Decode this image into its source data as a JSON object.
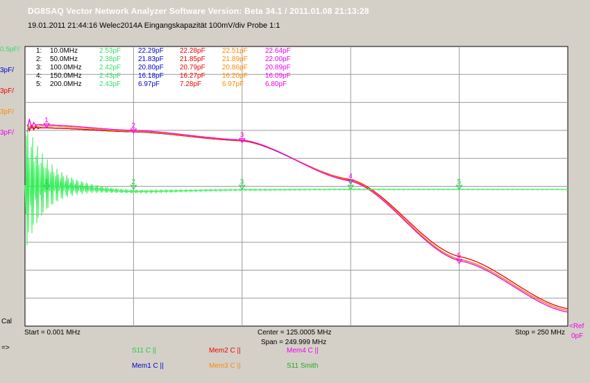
{
  "window": {
    "title": "DG8SAQ Vector Network Analyzer Software    Version:  Beta 34.1  /  2011.01.08  21:13:28",
    "subtitle": "19.01.2011    21:44:16    Welec2014A Eingangskapazität 100mV/div Probe 1:1"
  },
  "axis_labels": {
    "y_top": [
      {
        "text": "0.5pF/",
        "color": "#33dd66"
      },
      {
        "text": "3pF/",
        "color": "#0000cc"
      },
      {
        "text": "3pF/",
        "color": "#ee0000"
      },
      {
        "text": "3pF/",
        "color": "#ff8800"
      },
      {
        "text": "3pF/",
        "color": "#ee00ee"
      }
    ],
    "cal": "Cal",
    "start": "Start = 0.001 MHz",
    "center": "Center = 125.0005 MHz",
    "span": "Span = 249.999 MHz",
    "stop": "Stop = 250 MHz",
    "ref": "<Ref",
    "zero": "0pF",
    "arrow": "=>"
  },
  "markers": {
    "rows": [
      {
        "id": "1:",
        "freq": "10.0MHz",
        "s11": "2.53pF",
        "mem1": "22.29pF",
        "mem2": "22.28pF",
        "mem3": "22.51pF",
        "mem4": "22.64pF"
      },
      {
        "id": "2:",
        "freq": "50.0MHz",
        "s11": "2.38pF",
        "mem1": "21.83pF",
        "mem2": "21.85pF",
        "mem3": "21.89pF",
        "mem4": "22.00pF"
      },
      {
        "id": "3:",
        "freq": "100.0MHz",
        "s11": "2.42pF",
        "mem1": "20.80pF",
        "mem2": "20.79pF",
        "mem3": "20.86pF",
        "mem4": "20.89pF"
      },
      {
        "id": "4:",
        "freq": "150.0MHz",
        "s11": "2.43pF",
        "mem1": "16.18pF",
        "mem2": "16.27pF",
        "mem3": "16.20pF",
        "mem4": "16.09pF"
      },
      {
        "id": "5:",
        "freq": "200.0MHz",
        "s11": "2.43pF",
        "mem1": "6.97pF",
        "mem2": "7.28pF",
        "mem3": "6.97pF",
        "mem4": "6.80pF"
      }
    ]
  },
  "legend": [
    {
      "text": "S11   C ||",
      "color": "#22cc44"
    },
    {
      "text": "Mem2  C ||",
      "color": "#ee0000"
    },
    {
      "text": "Mem4  C ||",
      "color": "#ee00ee"
    },
    {
      "text": "Mem1  C ||",
      "color": "#0000cc"
    },
    {
      "text": "Mem3  C ||",
      "color": "#ff8800"
    },
    {
      "text": "S11     Smith",
      "color": "#22aa22"
    }
  ],
  "chart_data": {
    "type": "line",
    "x_unit": "MHz",
    "xlim": [
      0.001,
      250
    ],
    "series": [
      {
        "name": "S11",
        "color": "#33ee55",
        "scale_pF_per_div": 0.5,
        "x": [
          10,
          50,
          100,
          150,
          200,
          250
        ],
        "y": [
          2.53,
          2.38,
          2.42,
          2.43,
          2.43,
          2.43
        ]
      },
      {
        "name": "Mem1",
        "color": "#0000cc",
        "scale_pF_per_div": 3,
        "x": [
          1,
          10,
          50,
          100,
          150,
          200,
          250
        ],
        "y": [
          22.3,
          22.29,
          21.83,
          20.8,
          16.18,
          6.97,
          1.0
        ]
      },
      {
        "name": "Mem2",
        "color": "#ee0000",
        "scale_pF_per_div": 3,
        "x": [
          1,
          10,
          50,
          100,
          150,
          200,
          250
        ],
        "y": [
          22.3,
          22.28,
          21.85,
          20.79,
          16.27,
          7.28,
          1.2
        ]
      },
      {
        "name": "Mem3",
        "color": "#ff8800",
        "scale_pF_per_div": 3,
        "x": [
          1,
          10,
          50,
          100,
          150,
          200,
          250
        ],
        "y": [
          22.5,
          22.51,
          21.89,
          20.86,
          16.2,
          6.97,
          1.0
        ]
      },
      {
        "name": "Mem4",
        "color": "#ee00ee",
        "scale_pF_per_div": 3,
        "x": [
          1,
          10,
          50,
          100,
          150,
          200,
          250
        ],
        "y": [
          22.7,
          22.64,
          22.0,
          20.89,
          16.09,
          6.8,
          0.8
        ]
      }
    ],
    "marker_freqs": [
      10,
      50,
      100,
      150,
      200
    ],
    "grid": true
  }
}
